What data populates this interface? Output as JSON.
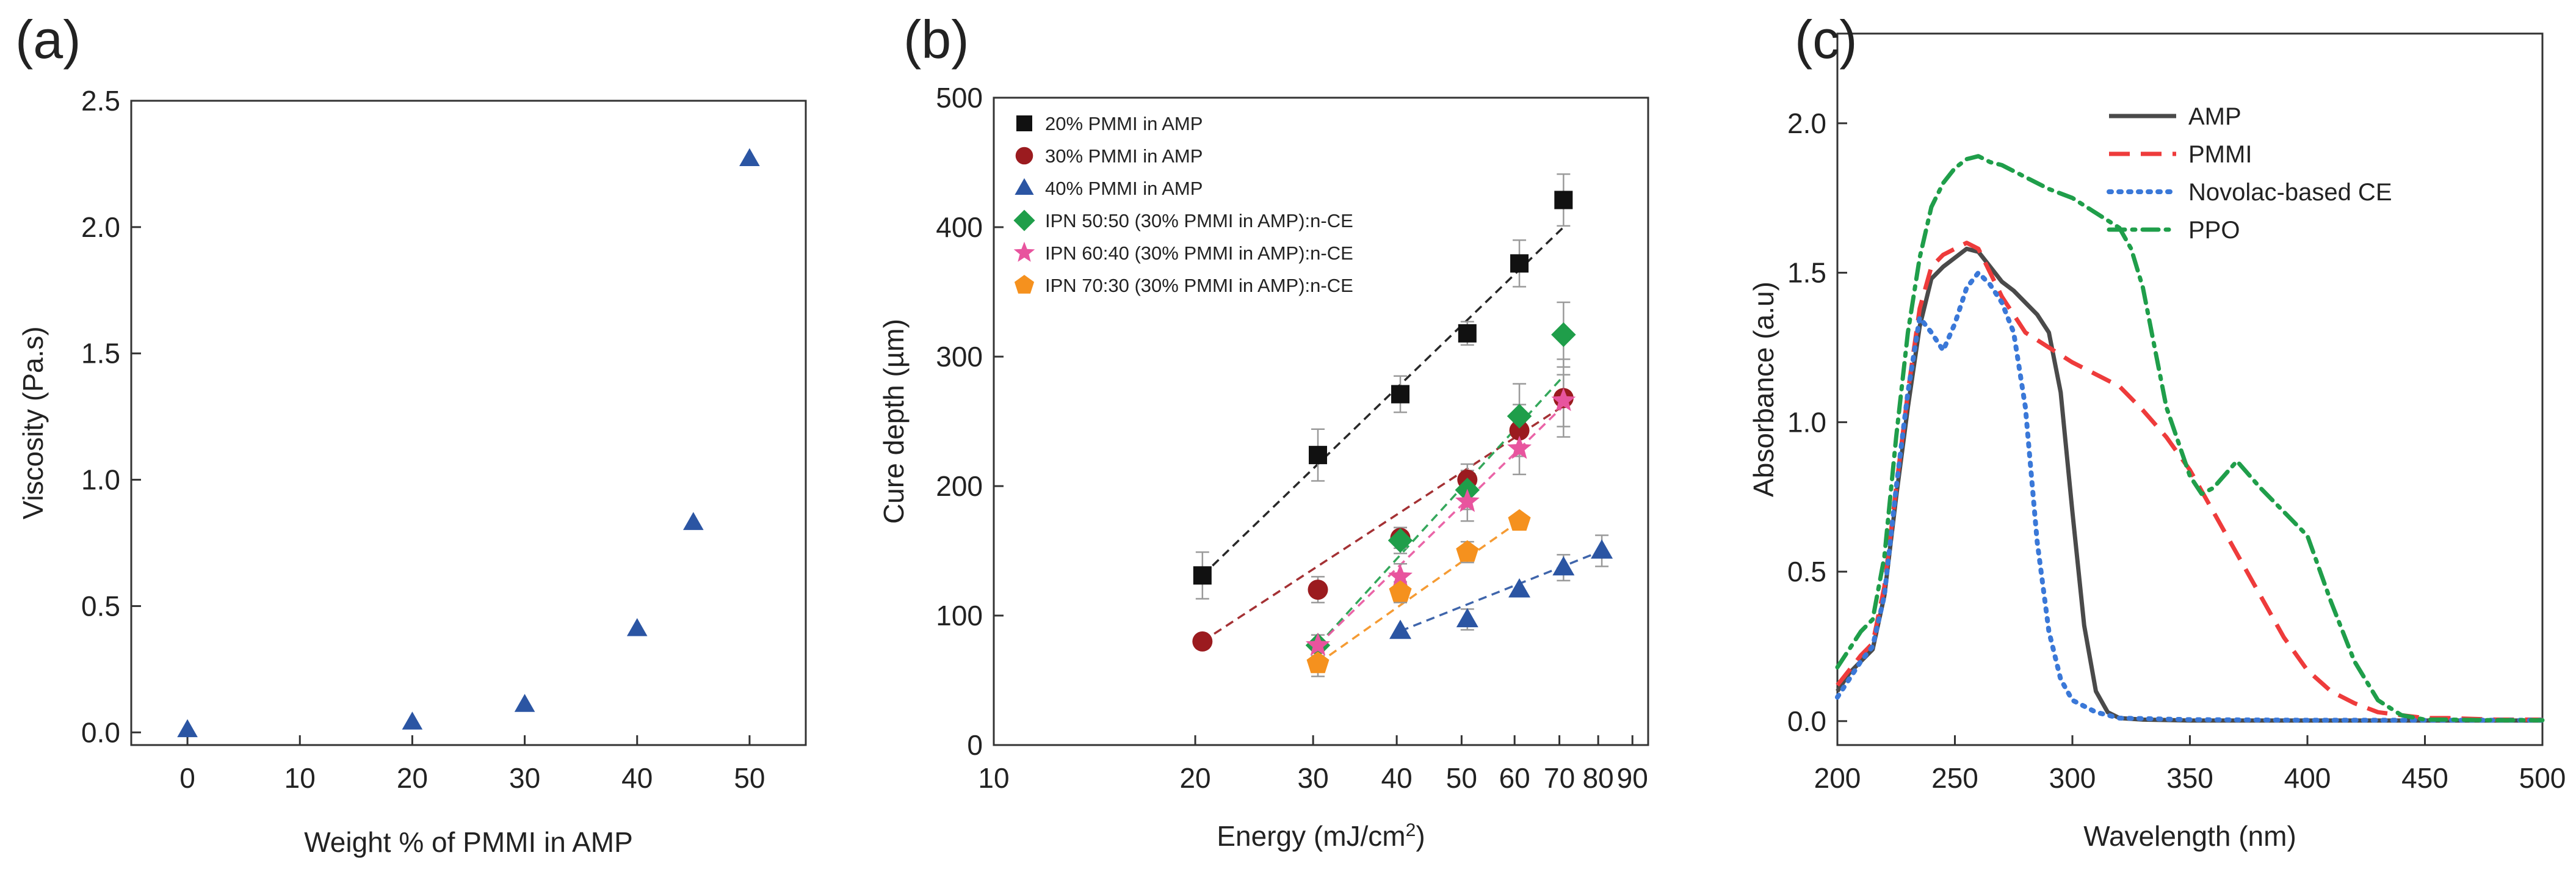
{
  "chart_data": [
    {
      "type": "scatter",
      "panel_label": "(a)",
      "xlabel": "Weight % of PMMI in AMP",
      "ylabel": "Viscosity (Pa.s)",
      "xlim": [
        -5,
        55
      ],
      "ylim": [
        -0.05,
        2.5
      ],
      "xticks": [
        0,
        10,
        20,
        30,
        40,
        50
      ],
      "yticks": [
        0.0,
        0.5,
        1.0,
        1.5,
        2.0,
        2.5
      ],
      "xtick_labels": [
        "0",
        "10",
        "20",
        "30",
        "40",
        "50"
      ],
      "ytick_labels": [
        "0.0",
        "0.5",
        "1.0",
        "1.5",
        "2.0",
        "2.5"
      ],
      "series": [
        {
          "name": "viscosity",
          "color": "#2b55a3",
          "marker": "triangle",
          "x": [
            0,
            20,
            30,
            40,
            45,
            50
          ],
          "y": [
            0.01,
            0.04,
            0.11,
            0.41,
            0.83,
            2.27
          ]
        }
      ]
    },
    {
      "type": "scatter",
      "panel_label": "(b)",
      "xlabel": "Energy (mJ/cm",
      "xlabel_sup": "2",
      "xlabel_end": ")",
      "ylabel": "Cure depth (µm)",
      "xscale": "log",
      "xlim": [
        10,
        95
      ],
      "ylim": [
        0,
        500
      ],
      "xticks": [
        10,
        20,
        30,
        40,
        50,
        60,
        70,
        80,
        90
      ],
      "xtick_labels": [
        "10",
        "20",
        "30",
        "40",
        "50",
        "60",
        "70",
        "80",
        "90"
      ],
      "yticks": [
        0,
        100,
        200,
        300,
        400,
        500
      ],
      "ytick_labels": [
        "0",
        "100",
        "200",
        "300",
        "400",
        "500"
      ],
      "legend_position": "top-left",
      "series": [
        {
          "name": "20% PMMI in AMP",
          "color": "#111111",
          "marker": "square",
          "x": [
            20.5,
            30.5,
            40.5,
            51,
            61,
            71
          ],
          "y": [
            131,
            224,
            271,
            318,
            372,
            421
          ],
          "err": [
            18,
            20,
            14,
            9,
            18,
            20
          ],
          "fit": [
            [
              20.5,
              131
            ],
            [
              71,
              400
            ]
          ]
        },
        {
          "name": "30% PMMI in AMP",
          "color": "#9b1b1f",
          "marker": "circle",
          "x": [
            20.5,
            30.5,
            40.5,
            51,
            61,
            71
          ],
          "y": [
            80,
            120,
            160,
            205,
            243,
            268
          ],
          "err": [
            0,
            10,
            8,
            12,
            20,
            30
          ],
          "fit": [
            [
              20.5,
              80
            ],
            [
              71,
              262
            ]
          ]
        },
        {
          "name": "40% PMMI in AMP",
          "color": "#2b55a3",
          "marker": "triangle",
          "x": [
            40.5,
            51,
            61,
            71,
            81
          ],
          "y": [
            88,
            97,
            120,
            137,
            150
          ],
          "err": [
            0,
            8,
            0,
            10,
            12
          ],
          "fit": [
            [
              40.5,
              88
            ],
            [
              81,
              150
            ]
          ]
        },
        {
          "name": "IPN 50:50 (30% PMMI in AMP):n-CE",
          "color": "#1f9e4a",
          "marker": "diamond",
          "x": [
            30.5,
            40.5,
            51,
            61,
            71
          ],
          "y": [
            77,
            158,
            197,
            254,
            317
          ],
          "err": [
            8,
            10,
            15,
            25,
            25
          ],
          "fit": [
            [
              30.5,
              77
            ],
            [
              71,
              285
            ]
          ]
        },
        {
          "name": "IPN 60:40 (30% PMMI in AMP):n-CE",
          "color": "#e8549e",
          "marker": "star",
          "x": [
            30.5,
            40.5,
            51,
            61,
            71
          ],
          "y": [
            77,
            130,
            188,
            229,
            266
          ],
          "err": [
            8,
            10,
            15,
            20,
            20
          ],
          "fit": [
            [
              30.5,
              77
            ],
            [
              71,
              262
            ]
          ]
        },
        {
          "name": "IPN 70:30 (30% PMMI in AMP):n-CE",
          "color": "#f5911e",
          "marker": "pentagon",
          "x": [
            30.5,
            40.5,
            51,
            61
          ],
          "y": [
            63,
            118,
            149,
            173
          ],
          "err": [
            10,
            8,
            8,
            0
          ],
          "fit": [
            [
              30.5,
              63
            ],
            [
              61,
              173
            ]
          ]
        }
      ]
    },
    {
      "type": "line",
      "panel_label": "(c)",
      "xlabel": "Wavelength (nm)",
      "ylabel": "Absorbance (a.u)",
      "xlim": [
        200,
        500
      ],
      "ylim": [
        -0.08,
        2.3
      ],
      "xticks": [
        200,
        250,
        300,
        350,
        400,
        450,
        500
      ],
      "xtick_labels": [
        "200",
        "250",
        "300",
        "350",
        "400",
        "450",
        "500"
      ],
      "yticks": [
        0.0,
        0.5,
        1.0,
        1.5,
        2.0
      ],
      "ytick_labels": [
        "0.0",
        "0.5",
        "1.0",
        "1.5",
        "2.0"
      ],
      "legend_position": "top-right",
      "series": [
        {
          "name": "AMP",
          "color": "#4a4a4a",
          "style": "solid",
          "x": [
            200,
            205,
            210,
            215,
            220,
            225,
            230,
            235,
            240,
            245,
            250,
            255,
            260,
            265,
            270,
            275,
            280,
            285,
            290,
            295,
            300,
            305,
            310,
            315,
            320,
            330,
            350,
            400,
            450,
            500
          ],
          "y": [
            0.1,
            0.16,
            0.2,
            0.24,
            0.42,
            0.75,
            1.05,
            1.32,
            1.48,
            1.52,
            1.55,
            1.58,
            1.57,
            1.52,
            1.47,
            1.44,
            1.4,
            1.36,
            1.3,
            1.1,
            0.7,
            0.32,
            0.1,
            0.03,
            0.01,
            0.005,
            0.002,
            0.002,
            0.002,
            0.002
          ]
        },
        {
          "name": "PMMI",
          "color": "#ee3b3b",
          "style": "dashed",
          "x": [
            200,
            205,
            210,
            215,
            220,
            225,
            230,
            235,
            240,
            245,
            250,
            255,
            260,
            265,
            270,
            280,
            290,
            300,
            310,
            320,
            330,
            340,
            350,
            360,
            370,
            380,
            390,
            400,
            410,
            420,
            430,
            440,
            450,
            460,
            480,
            500
          ],
          "y": [
            0.12,
            0.17,
            0.22,
            0.26,
            0.45,
            0.78,
            1.1,
            1.38,
            1.52,
            1.56,
            1.58,
            1.6,
            1.58,
            1.5,
            1.42,
            1.3,
            1.25,
            1.2,
            1.16,
            1.12,
            1.04,
            0.95,
            0.84,
            0.7,
            0.56,
            0.42,
            0.28,
            0.17,
            0.1,
            0.06,
            0.03,
            0.02,
            0.01,
            0.01,
            0.005,
            0.005
          ]
        },
        {
          "name": "Novolac-based CE",
          "color": "#3a78d8",
          "style": "dotted",
          "x": [
            200,
            205,
            210,
            215,
            220,
            225,
            230,
            235,
            240,
            245,
            250,
            255,
            260,
            265,
            270,
            275,
            280,
            285,
            290,
            295,
            300,
            310,
            320,
            350,
            400,
            450,
            500
          ],
          "y": [
            0.08,
            0.14,
            0.2,
            0.25,
            0.42,
            0.78,
            1.1,
            1.35,
            1.3,
            1.24,
            1.33,
            1.45,
            1.5,
            1.46,
            1.4,
            1.3,
            1.05,
            0.6,
            0.3,
            0.14,
            0.07,
            0.03,
            0.01,
            0.005,
            0.003,
            0.003,
            0.003
          ]
        },
        {
          "name": "PPO",
          "color": "#1f9e4a",
          "style": "dashdot",
          "x": [
            200,
            205,
            210,
            215,
            220,
            225,
            230,
            235,
            240,
            245,
            250,
            255,
            260,
            265,
            270,
            280,
            290,
            300,
            310,
            320,
            325,
            330,
            340,
            350,
            355,
            360,
            370,
            380,
            390,
            400,
            410,
            420,
            430,
            440,
            450,
            460,
            480,
            500
          ],
          "y": [
            0.18,
            0.24,
            0.3,
            0.34,
            0.55,
            0.95,
            1.3,
            1.55,
            1.72,
            1.8,
            1.85,
            1.88,
            1.89,
            1.87,
            1.86,
            1.82,
            1.78,
            1.75,
            1.7,
            1.65,
            1.58,
            1.45,
            1.05,
            0.82,
            0.76,
            0.78,
            0.87,
            0.78,
            0.7,
            0.62,
            0.4,
            0.2,
            0.07,
            0.02,
            0.005,
            0.005,
            0.003,
            0.003
          ]
        }
      ]
    }
  ]
}
